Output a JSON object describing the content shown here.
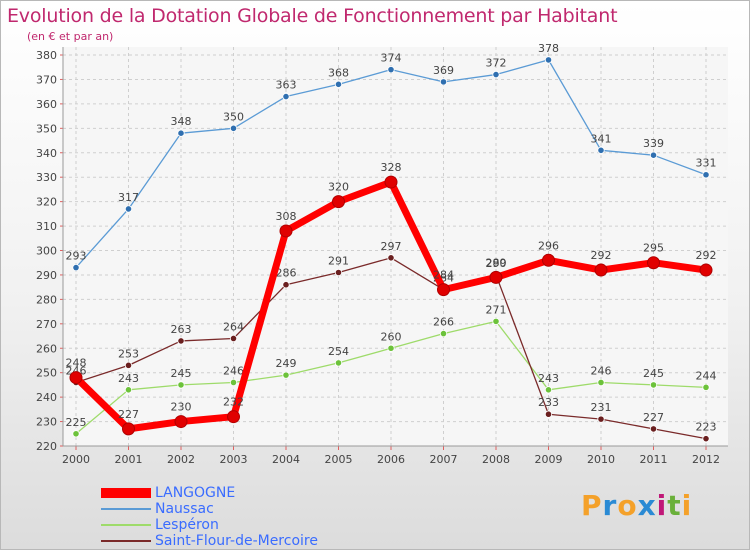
{
  "header": {
    "title": "Evolution de la Dotation Globale de Fonctionnement par Habitant",
    "subtitle": "(en € et par an)"
  },
  "chart_data": {
    "type": "line",
    "title": "Evolution de la Dotation Globale de Fonctionnement par Habitant",
    "subtitle": "(en € et par an)",
    "xlabel": "",
    "ylabel": "",
    "ylim": [
      220,
      380
    ],
    "ytick_step": 10,
    "grid": true,
    "legend_position": "bottom-left",
    "categories": [
      "2000",
      "2001",
      "2002",
      "2003",
      "2004",
      "2005",
      "2006",
      "2007",
      "2008",
      "2009",
      "2010",
      "2011",
      "2012"
    ],
    "series": [
      {
        "name": "Naussac",
        "color": "#5b9bd5",
        "marker": "#2f6fb0",
        "values": [
          293,
          317,
          348,
          350,
          363,
          368,
          374,
          369,
          372,
          378,
          341,
          339,
          331
        ]
      },
      {
        "name": "Lespéron",
        "color": "#9edb6a",
        "marker": "#6cc23a",
        "values": [
          225,
          243,
          245,
          246,
          249,
          254,
          260,
          266,
          271,
          243,
          246,
          245,
          244
        ]
      },
      {
        "name": "Saint-Flour-de-Mercoire",
        "color": "#7a2a2a",
        "marker": "#6a1f1f",
        "values": [
          246,
          253,
          263,
          264,
          286,
          291,
          297,
          284,
          290,
          233,
          231,
          227,
          223
        ]
      },
      {
        "name": "LANGOGNE",
        "color": "#ff0000",
        "marker": "#e00000",
        "values": [
          248,
          227,
          230,
          232,
          308,
          320,
          328,
          284,
          289,
          296,
          292,
          295,
          292
        ]
      }
    ]
  },
  "legend": {
    "items": [
      {
        "label": "LANGOGNE",
        "color": "#ff0000"
      },
      {
        "label": "Naussac",
        "color": "#5b9bd5"
      },
      {
        "label": "Lespéron",
        "color": "#9edb6a"
      },
      {
        "label": "Saint-Flour-de-Mercoire",
        "color": "#7a2a2a"
      }
    ]
  },
  "logo": {
    "letters": [
      "P",
      "r",
      "o",
      "x",
      "i",
      "t",
      "i"
    ],
    "colors": [
      "#f4a12a",
      "#2a8ad4",
      "#f4a12a",
      "#2a8ad4",
      "#c01878",
      "#6ab03a",
      "#f4a12a"
    ]
  }
}
